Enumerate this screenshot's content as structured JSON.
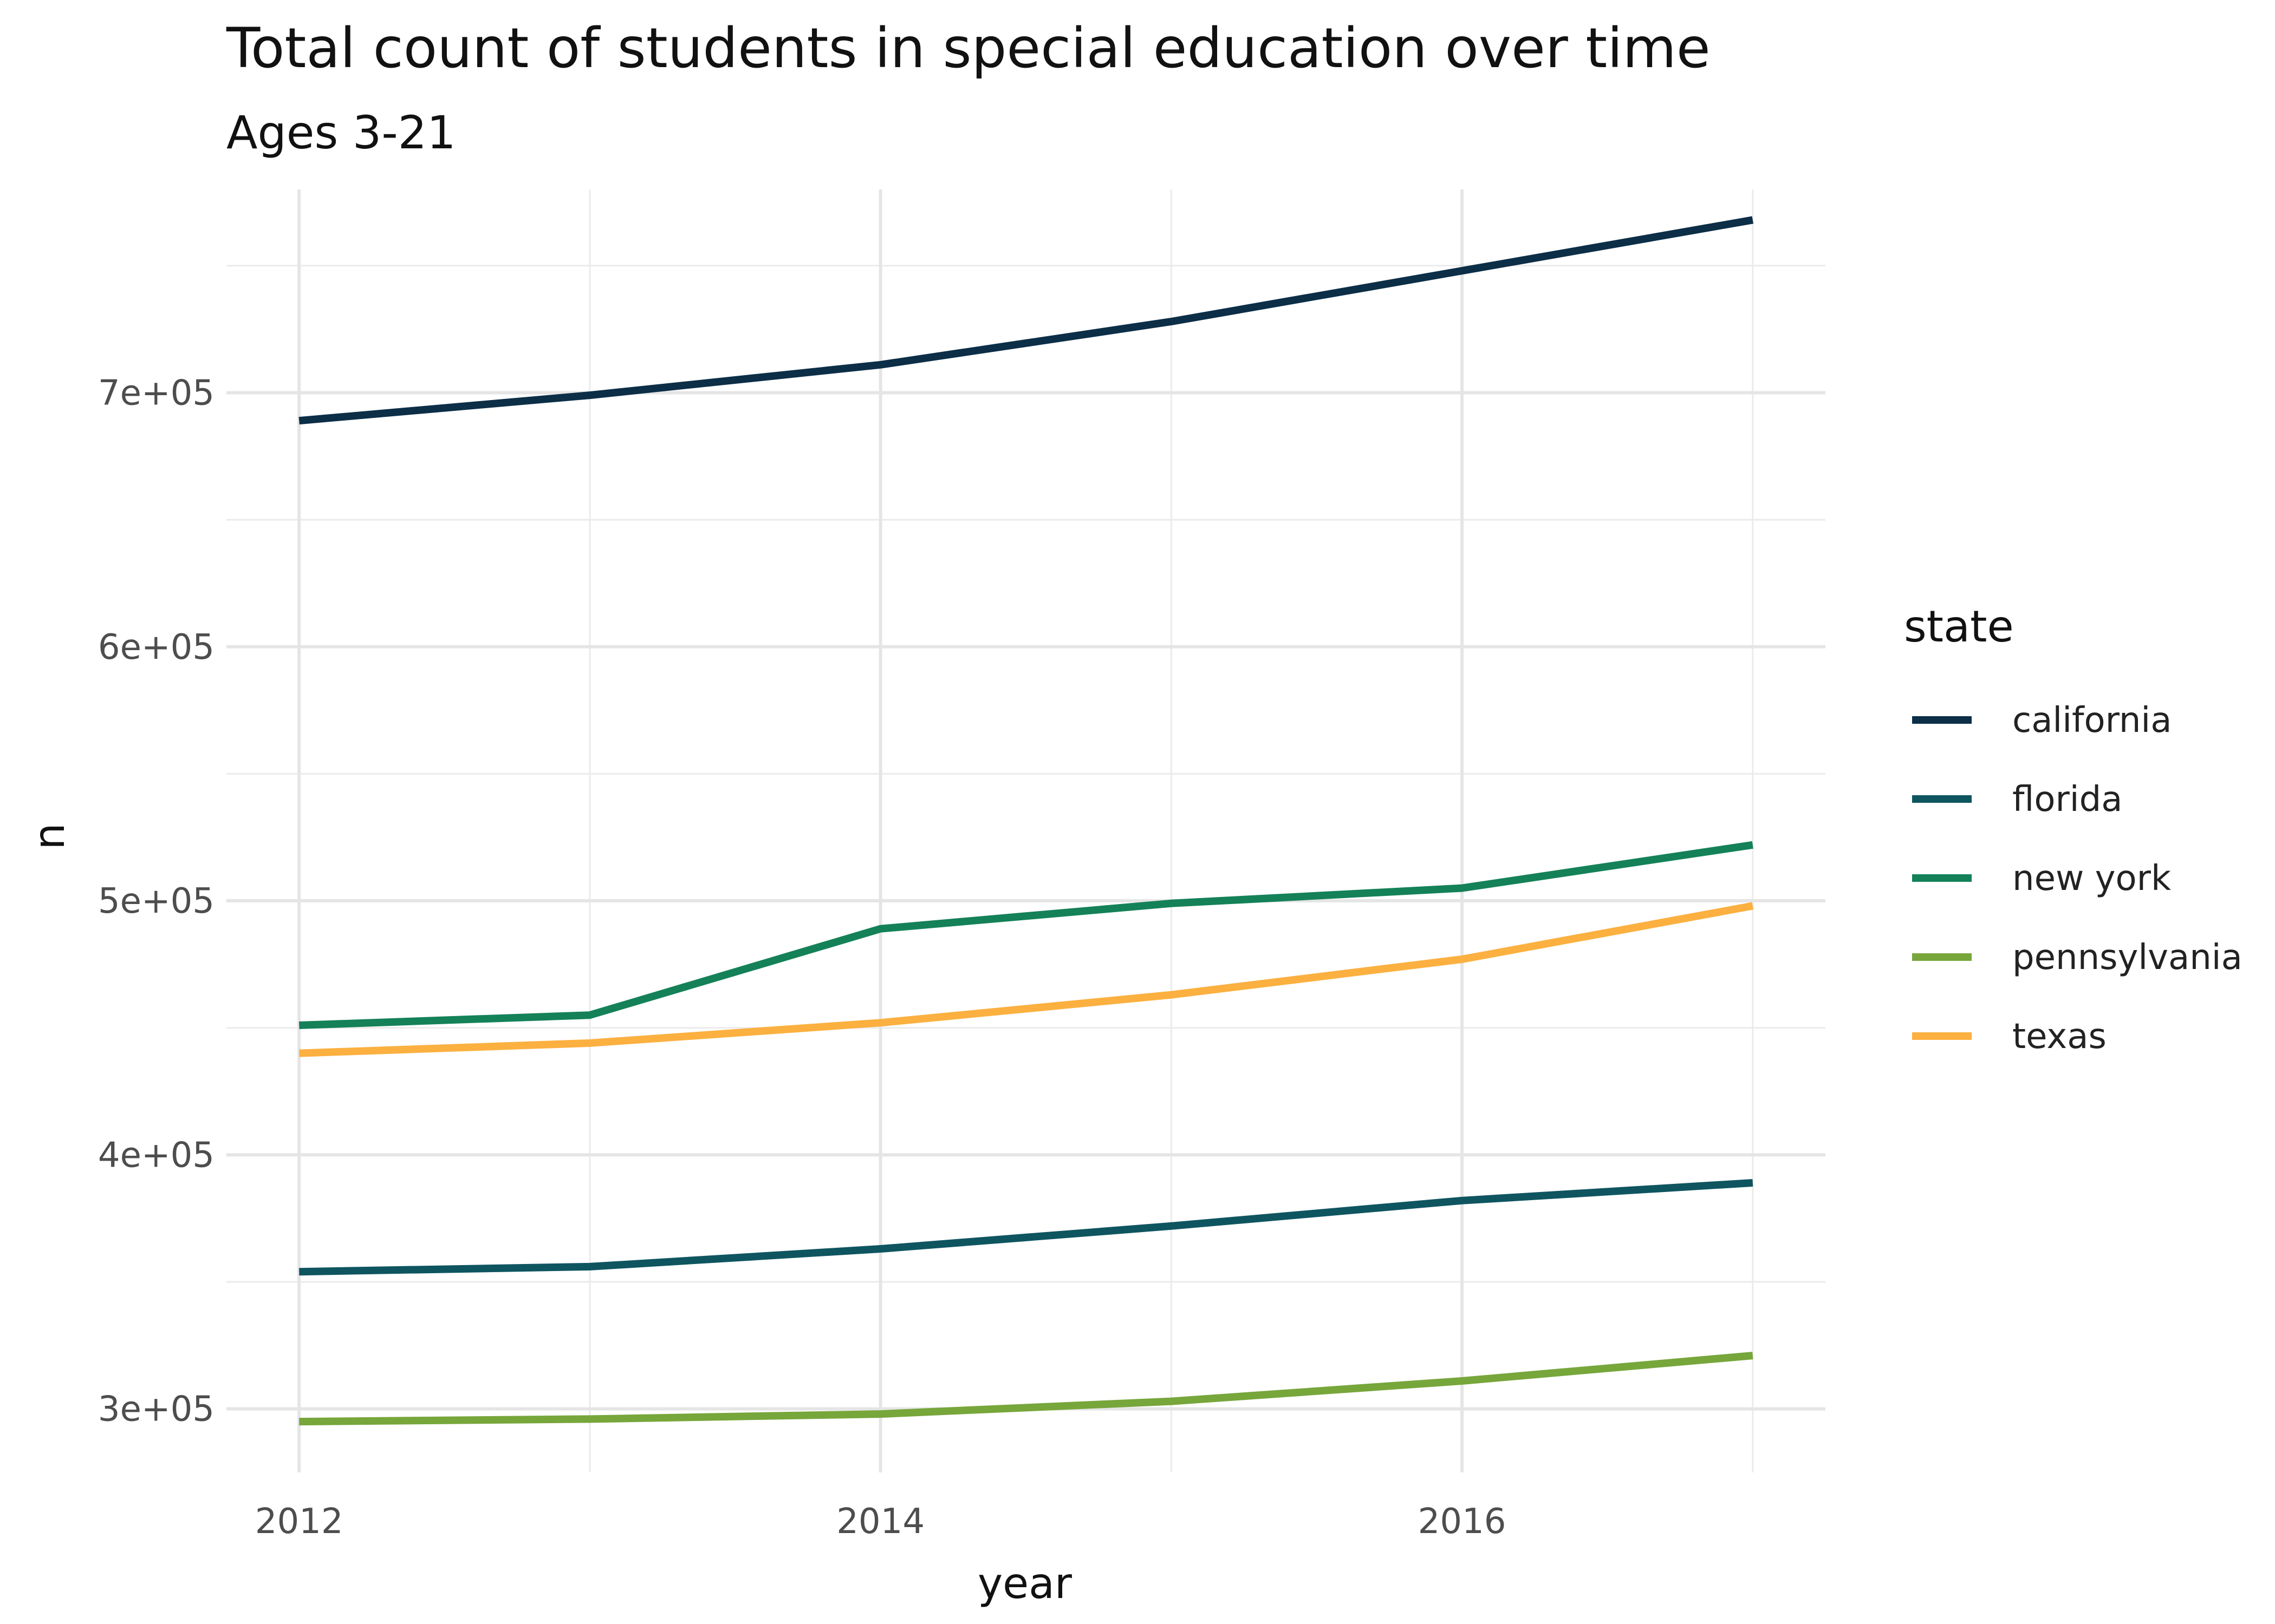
{
  "chart_data": {
    "type": "line",
    "title": "Total count of students in special education over time",
    "subtitle": "Ages 3-21",
    "xlabel": "year",
    "ylabel": "n",
    "x": [
      2012,
      2013,
      2014,
      2015,
      2016,
      2017
    ],
    "x_ticks": [
      "2012",
      "2014",
      "2016"
    ],
    "y_ticks": [
      "3e+05",
      "4e+05",
      "5e+05",
      "6e+05",
      "7e+05"
    ],
    "xlim": [
      2011.75,
      2017.25
    ],
    "ylim": [
      275000,
      780000
    ],
    "grid": true,
    "legend": {
      "title": "state",
      "position": "right"
    },
    "series": [
      {
        "name": "california",
        "color": "#0c2e47",
        "values": [
          689000,
          699000,
          711000,
          728000,
          748000,
          768000
        ]
      },
      {
        "name": "florida",
        "color": "#0e5560",
        "values": [
          354000,
          356000,
          363000,
          372000,
          382000,
          389000
        ]
      },
      {
        "name": "new york",
        "color": "#148159",
        "values": [
          451000,
          455000,
          489000,
          499000,
          505000,
          522000
        ]
      },
      {
        "name": "pennsylvania",
        "color": "#77a63b",
        "values": [
          295000,
          296000,
          298000,
          303000,
          311000,
          321000
        ]
      },
      {
        "name": "texas",
        "color": "#fbb040",
        "values": [
          440000,
          444000,
          452000,
          463000,
          477000,
          498000
        ]
      }
    ]
  }
}
